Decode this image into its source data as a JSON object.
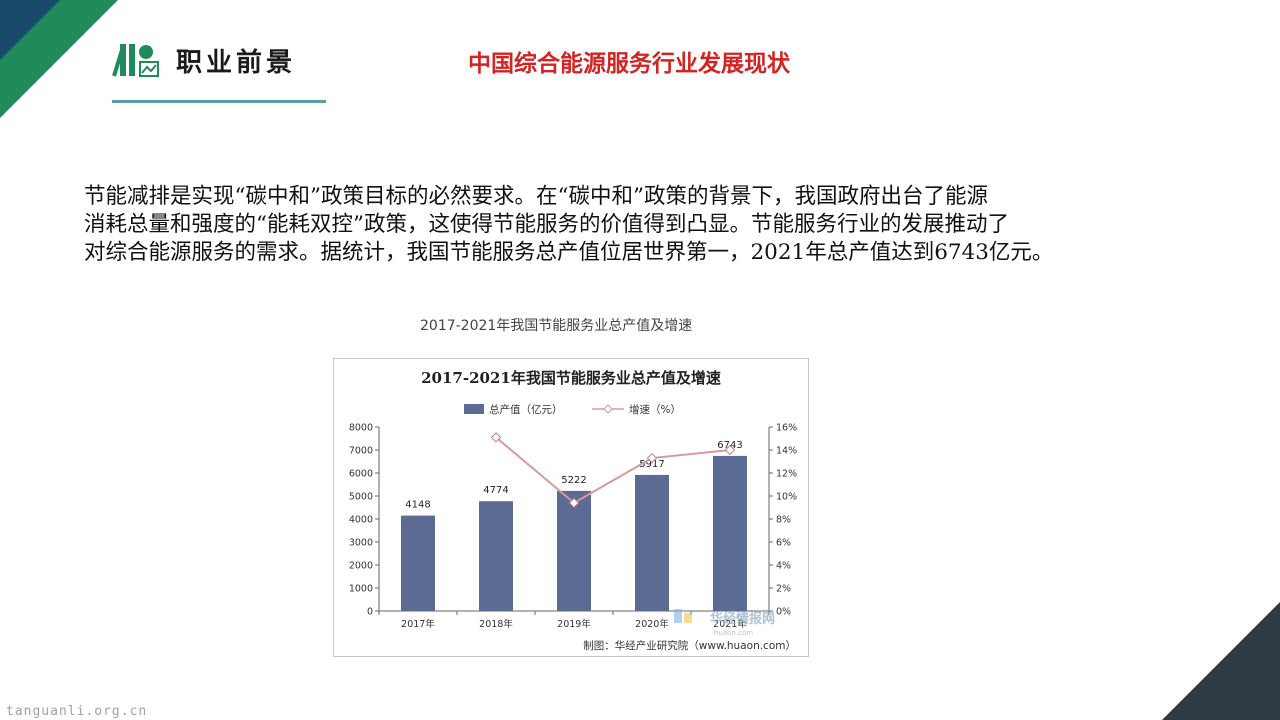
{
  "header": {
    "logo_text": "职业前景",
    "title": "中国综合能源服务行业发展现状"
  },
  "body_text": {
    "line1": "节能减排是实现“碳中和”政策目标的必然要求。在“碳中和”政策的背景下，我国政府出台了能源",
    "line2": "消耗总量和强度的“能耗双控”政策，这使得节能服务的价值得到凸显。节能服务行业的发展推动了",
    "line3": "对综合能源服务的需求。据统计，我国节能服务总产值位居世界第一，2021年总产值达到6743亿元。"
  },
  "figure_caption": "2017-2021年我国节能服务业总产值及增速",
  "chart_data": {
    "type": "bar",
    "title": "2017-2021年我国节能服务业总产值及增速",
    "categories": [
      "2017年",
      "2018年",
      "2019年",
      "2020年",
      "2021年"
    ],
    "series": [
      {
        "name": "总产值（亿元）",
        "type": "bar",
        "axis": "left",
        "values": [
          4148,
          4774,
          5222,
          5917,
          6743
        ],
        "color": "#5b6b93"
      },
      {
        "name": "增速（%）",
        "type": "line",
        "axis": "right",
        "values": [
          null,
          15.1,
          9.4,
          13.3,
          14.0
        ],
        "color": "#d69a9a"
      }
    ],
    "ylim_left": [
      0,
      8000
    ],
    "yticks_left": [
      "0",
      "1000",
      "2000",
      "3000",
      "4000",
      "5000",
      "6000",
      "7000",
      "8000"
    ],
    "ylim_right": [
      0,
      16
    ],
    "yticks_right": [
      "0%",
      "2%",
      "4%",
      "6%",
      "8%",
      "10%",
      "12%",
      "14%",
      "16%"
    ],
    "data_labels": [
      "4148",
      "4774",
      "5222",
      "5917",
      "6743"
    ],
    "source": "制图：华经产业研究院（www.huaon.com）",
    "watermark": "华经情报网",
    "watermark_sub": "huaon.com",
    "legend_position": "top-center",
    "grid": false
  },
  "footer_watermark": "tanguanli.org.cn",
  "colors": {
    "title_red": "#d42323",
    "accent_green": "#1f8a5a",
    "bar": "#5b6b93",
    "line": "#d69a9a"
  }
}
